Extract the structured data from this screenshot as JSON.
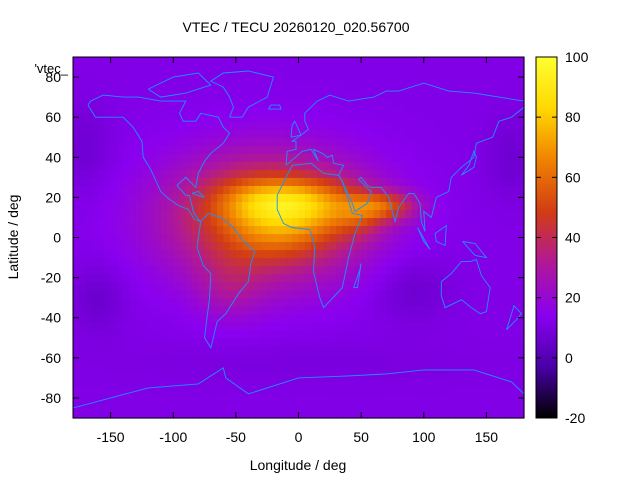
{
  "chart_data": {
    "type": "heatmap",
    "title": "VTEC / TECU 20260120_020.56700",
    "xlabel": "Longitude / deg",
    "ylabel": "Latitude / deg",
    "xlim": [
      -180,
      180
    ],
    "ylim": [
      -90,
      90
    ],
    "x_ticks": [
      -150,
      -100,
      -50,
      0,
      50,
      100,
      150
    ],
    "y_ticks": [
      -80,
      -60,
      -40,
      -20,
      0,
      20,
      40,
      60,
      80
    ],
    "legend_label": "'vtec_",
    "colorbar": {
      "range": [
        -20,
        100
      ],
      "ticks": [
        -20,
        0,
        20,
        40,
        60,
        80,
        100
      ],
      "palette": [
        "#000000",
        "#4a00a8",
        "#8a00f0",
        "#b01898",
        "#d23c14",
        "#f08200",
        "#ffd800",
        "#ffff30"
      ]
    },
    "background_value": 12,
    "features": [
      {
        "lon": -25,
        "lat": 10,
        "sigma_lon": 55,
        "sigma_lat": 22,
        "amplitude": 45
      },
      {
        "lon": -20,
        "lat": 18,
        "sigma_lon": 30,
        "sigma_lat": 8,
        "amplitude": 32
      },
      {
        "lon": 20,
        "lat": 16,
        "sigma_lon": 25,
        "sigma_lat": 9,
        "amplitude": 18
      },
      {
        "lon": -15,
        "lat": 2,
        "sigma_lon": 28,
        "sigma_lat": 8,
        "amplitude": 12
      },
      {
        "lon": -55,
        "lat": -25,
        "sigma_lon": 20,
        "sigma_lat": 12,
        "amplitude": 10
      },
      {
        "lon": 70,
        "lat": 16,
        "sigma_lon": 18,
        "sigma_lat": 5,
        "amplitude": 30
      },
      {
        "lon": 50,
        "lat": 12,
        "sigma_lon": 15,
        "sigma_lat": 8,
        "amplitude": 15
      },
      {
        "lon": -160,
        "lat": -30,
        "sigma_lon": 15,
        "sigma_lat": 12,
        "amplitude": -6
      },
      {
        "lon": 90,
        "lat": -25,
        "sigma_lon": 22,
        "sigma_lat": 12,
        "amplitude": -6
      },
      {
        "lon": 170,
        "lat": 40,
        "sigma_lon": 15,
        "sigma_lat": 15,
        "amplitude": -5
      },
      {
        "lon": -170,
        "lat": 45,
        "sigma_lon": 15,
        "sigma_lat": 15,
        "amplitude": -5
      },
      {
        "lon": 0,
        "lat": -62,
        "sigma_lon": 120,
        "sigma_lat": 8,
        "amplitude": -2
      }
    ],
    "grid_resolution_deg": [
      5,
      4
    ],
    "coastline_color": "#1e90ff",
    "coastlines": [
      [
        [
          -168,
          66
        ],
        [
          -162,
          60
        ],
        [
          -152,
          60
        ],
        [
          -140,
          60
        ],
        [
          -132,
          55
        ],
        [
          -125,
          48
        ],
        [
          -124,
          40
        ],
        [
          -118,
          34
        ],
        [
          -110,
          23
        ],
        [
          -105,
          20
        ],
        [
          -96,
          16
        ],
        [
          -88,
          14
        ],
        [
          -83,
          9
        ],
        [
          -78,
          8
        ],
        [
          -80,
          9
        ],
        [
          -84,
          13
        ],
        [
          -87,
          21
        ],
        [
          -90,
          21
        ],
        [
          -97,
          26
        ],
        [
          -90,
          30
        ],
        [
          -82,
          25
        ],
        [
          -80,
          32
        ],
        [
          -75,
          38
        ],
        [
          -70,
          42
        ],
        [
          -66,
          44
        ],
        [
          -60,
          47
        ],
        [
          -55,
          52
        ],
        [
          -60,
          55
        ],
        [
          -64,
          60
        ],
        [
          -78,
          62
        ],
        [
          -82,
          58
        ],
        [
          -92,
          58
        ],
        [
          -95,
          62
        ],
        [
          -90,
          68
        ],
        [
          -110,
          68
        ],
        [
          -128,
          70
        ],
        [
          -140,
          70
        ],
        [
          -156,
          71
        ],
        [
          -166,
          68
        ],
        [
          -168,
          66
        ]
      ],
      [
        [
          -78,
          8
        ],
        [
          -72,
          12
        ],
        [
          -62,
          10
        ],
        [
          -52,
          5
        ],
        [
          -45,
          -1
        ],
        [
          -35,
          -7
        ],
        [
          -38,
          -13
        ],
        [
          -40,
          -22
        ],
        [
          -48,
          -28
        ],
        [
          -58,
          -38
        ],
        [
          -65,
          -42
        ],
        [
          -68,
          -50
        ],
        [
          -70,
          -55
        ],
        [
          -75,
          -50
        ],
        [
          -73,
          -40
        ],
        [
          -71,
          -30
        ],
        [
          -70,
          -18
        ],
        [
          -76,
          -14
        ],
        [
          -81,
          -5
        ],
        [
          -80,
          0
        ],
        [
          -78,
          8
        ]
      ],
      [
        [
          -17,
          21
        ],
        [
          -10,
          30
        ],
        [
          -5,
          36
        ],
        [
          10,
          37
        ],
        [
          20,
          32
        ],
        [
          32,
          31
        ],
        [
          35,
          28
        ],
        [
          43,
          12
        ],
        [
          51,
          11
        ],
        [
          45,
          2
        ],
        [
          40,
          -10
        ],
        [
          35,
          -25
        ],
        [
          20,
          -35
        ],
        [
          17,
          -30
        ],
        [
          12,
          -17
        ],
        [
          13,
          -5
        ],
        [
          9,
          4
        ],
        [
          -5,
          5
        ],
        [
          -12,
          7
        ],
        [
          -17,
          14
        ],
        [
          -17,
          21
        ]
      ],
      [
        [
          -10,
          36
        ],
        [
          -9,
          43
        ],
        [
          -2,
          44
        ],
        [
          -2,
          48
        ],
        [
          -5,
          48
        ],
        [
          2,
          51
        ],
        [
          8,
          54
        ],
        [
          5,
          58
        ],
        [
          5,
          62
        ],
        [
          15,
          68
        ],
        [
          25,
          71
        ],
        [
          40,
          68
        ],
        [
          60,
          70
        ],
        [
          70,
          73
        ],
        [
          80,
          73
        ],
        [
          100,
          77
        ],
        [
          120,
          73
        ],
        [
          140,
          72
        ],
        [
          160,
          70
        ],
        [
          180,
          68
        ],
        [
          180,
          65
        ],
        [
          170,
          60
        ],
        [
          160,
          58
        ],
        [
          155,
          50
        ],
        [
          142,
          47
        ],
        [
          140,
          40
        ],
        [
          130,
          35
        ],
        [
          122,
          30
        ],
        [
          120,
          23
        ],
        [
          110,
          20
        ],
        [
          106,
          10
        ],
        [
          100,
          13
        ],
        [
          101,
          3
        ],
        [
          98,
          8
        ],
        [
          97,
          17
        ],
        [
          92,
          22
        ],
        [
          88,
          22
        ],
        [
          80,
          15
        ],
        [
          77,
          8
        ],
        [
          72,
          20
        ],
        [
          66,
          25
        ],
        [
          58,
          25
        ],
        [
          55,
          26
        ],
        [
          50,
          30
        ],
        [
          48,
          29
        ],
        [
          56,
          24
        ],
        [
          58,
          23
        ],
        [
          55,
          17
        ],
        [
          45,
          13
        ],
        [
          43,
          17
        ],
        [
          35,
          28
        ],
        [
          32,
          31
        ],
        [
          36,
          36
        ],
        [
          28,
          37
        ],
        [
          27,
          41
        ],
        [
          23,
          40
        ],
        [
          19,
          42
        ],
        [
          12,
          44
        ],
        [
          16,
          38
        ],
        [
          10,
          44
        ],
        [
          3,
          43
        ],
        [
          -10,
          36
        ]
      ],
      [
        [
          114,
          -22
        ],
        [
          122,
          -18
        ],
        [
          130,
          -12
        ],
        [
          137,
          -12
        ],
        [
          142,
          -11
        ],
        [
          146,
          -19
        ],
        [
          153,
          -25
        ],
        [
          150,
          -37
        ],
        [
          145,
          -38
        ],
        [
          138,
          -35
        ],
        [
          130,
          -31
        ],
        [
          117,
          -35
        ],
        [
          114,
          -29
        ],
        [
          114,
          -22
        ]
      ],
      [
        [
          -180,
          -85
        ],
        [
          -150,
          -80
        ],
        [
          -120,
          -75
        ],
        [
          -80,
          -73
        ],
        [
          -60,
          -65
        ],
        [
          -58,
          -70
        ],
        [
          -40,
          -78
        ],
        [
          0,
          -70
        ],
        [
          40,
          -69
        ],
        [
          70,
          -68
        ],
        [
          100,
          -66
        ],
        [
          140,
          -66
        ],
        [
          170,
          -72
        ],
        [
          180,
          -78
        ],
        [
          180,
          -85
        ]
      ],
      [
        [
          -55,
          60
        ],
        [
          -45,
          60
        ],
        [
          -40,
          65
        ],
        [
          -25,
          70
        ],
        [
          -20,
          80
        ],
        [
          -40,
          83
        ],
        [
          -60,
          82
        ],
        [
          -70,
          78
        ],
        [
          -60,
          75
        ],
        [
          -55,
          70
        ],
        [
          -52,
          65
        ],
        [
          -55,
          60
        ]
      ],
      [
        [
          -24,
          64
        ],
        [
          -14,
          64
        ],
        [
          -15,
          66
        ],
        [
          -22,
          66
        ],
        [
          -24,
          64
        ]
      ],
      [
        [
          -6,
          50
        ],
        [
          2,
          51
        ],
        [
          0,
          54
        ],
        [
          -3,
          58
        ],
        [
          -5,
          56
        ],
        [
          -6,
          50
        ]
      ],
      [
        [
          130,
          31
        ],
        [
          140,
          35
        ],
        [
          142,
          40
        ],
        [
          140,
          43
        ],
        [
          136,
          36
        ],
        [
          130,
          31
        ]
      ],
      [
        [
          95,
          5
        ],
        [
          105,
          -6
        ],
        [
          100,
          -2
        ],
        [
          95,
          5
        ]
      ],
      [
        [
          109,
          2
        ],
        [
          118,
          6
        ],
        [
          117,
          -4
        ],
        [
          110,
          -2
        ],
        [
          109,
          2
        ]
      ],
      [
        [
          131,
          -2
        ],
        [
          141,
          -3
        ],
        [
          150,
          -10
        ],
        [
          141,
          -9
        ],
        [
          131,
          -2
        ]
      ],
      [
        [
          44,
          -25
        ],
        [
          49,
          -16
        ],
        [
          50,
          -13
        ],
        [
          47,
          -25
        ],
        [
          44,
          -25
        ]
      ],
      [
        [
          166,
          -46
        ],
        [
          174,
          -41
        ],
        [
          178,
          -38
        ],
        [
          172,
          -34
        ],
        [
          166,
          -46
        ]
      ],
      [
        [
          -85,
          22
        ],
        [
          -75,
          20
        ],
        [
          -80,
          23
        ],
        [
          -85,
          22
        ]
      ],
      [
        [
          -120,
          74
        ],
        [
          -100,
          80
        ],
        [
          -80,
          82
        ],
        [
          -70,
          76
        ],
        [
          -90,
          72
        ],
        [
          -110,
          70
        ],
        [
          -120,
          74
        ]
      ]
    ]
  }
}
